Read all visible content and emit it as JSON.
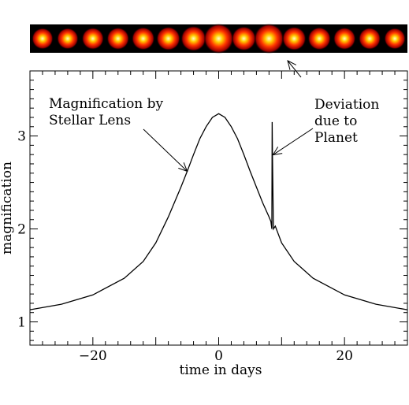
{
  "strip": {
    "background": "#000000",
    "frames": [
      0.72,
      0.72,
      0.74,
      0.75,
      0.77,
      0.8,
      0.85,
      1.0,
      0.82,
      1.0,
      0.8,
      0.77,
      0.75,
      0.74,
      0.72
    ]
  },
  "colors": {
    "glow_core": "#ffffcc",
    "glow_mid": "#ffcc00",
    "glow_outer": "#ff3300",
    "glow_edge": "#990000"
  },
  "chart_data": {
    "type": "line",
    "title": "",
    "xlabel": "time in days",
    "ylabel": "magnification",
    "xlim": [
      -30,
      30
    ],
    "ylim": [
      0.75,
      3.7
    ],
    "xticks": [
      -20,
      0,
      20
    ],
    "yticks": [
      1,
      2,
      3
    ],
    "series": [
      {
        "x": [
          -30,
          -25,
          -20,
          -15,
          -12,
          -10,
          -8,
          -6,
          -5,
          -4,
          -3,
          -2,
          -1,
          0,
          1,
          2,
          3,
          4,
          5,
          6,
          7,
          8,
          8.3,
          8.45,
          8.5,
          8.55,
          8.7,
          9,
          10,
          12,
          15,
          20,
          25,
          30
        ],
        "y": [
          1.13,
          1.19,
          1.29,
          1.47,
          1.65,
          1.85,
          2.13,
          2.45,
          2.62,
          2.8,
          2.97,
          3.1,
          3.2,
          3.24,
          3.2,
          3.1,
          2.97,
          2.8,
          2.62,
          2.45,
          2.28,
          2.13,
          2.08,
          2.0,
          3.15,
          2.78,
          2.0,
          2.03,
          1.85,
          1.65,
          1.47,
          1.29,
          1.19,
          1.13
        ]
      }
    ],
    "annotations": [
      {
        "lines": [
          "Magnification by",
          "Stellar Lens"
        ],
        "x": -5,
        "y": 2.62
      },
      {
        "lines": [
          "Deviation",
          "due to",
          "Planet"
        ],
        "x": 8.5,
        "y": 2.78
      }
    ]
  }
}
